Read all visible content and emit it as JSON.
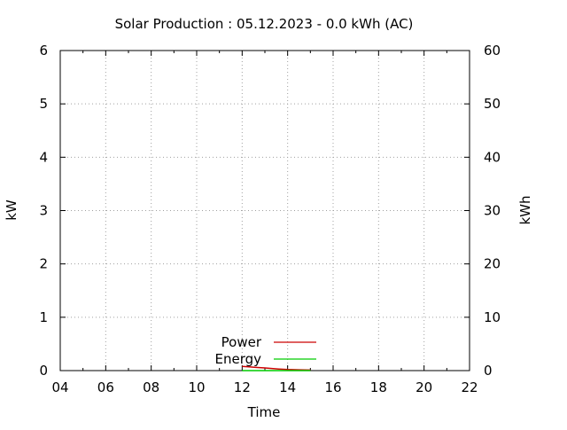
{
  "chart_data": {
    "type": "line",
    "title": "Solar Production : 05.12.2023 - 0.0 kWh (AC)",
    "xlabel": "Time",
    "ylabel": "kW",
    "y2label": "kWh",
    "xlim": [
      4,
      22
    ],
    "ylim": [
      0,
      6
    ],
    "y2lim": [
      0,
      60
    ],
    "x_ticks": [
      "04",
      "06",
      "08",
      "10",
      "12",
      "14",
      "16",
      "18",
      "20",
      "22"
    ],
    "y_ticks": [
      "0",
      "1",
      "2",
      "3",
      "4",
      "5",
      "6"
    ],
    "y2_ticks": [
      "0",
      "10",
      "20",
      "30",
      "40",
      "50",
      "60"
    ],
    "grid": true,
    "legend_position": "bottom-center",
    "series": [
      {
        "name": "Power",
        "axis": "left",
        "color": "#cc0000",
        "x": [
          12.0,
          12.3,
          12.6,
          13.0,
          13.3,
          13.6,
          14.0,
          14.5,
          15.0
        ],
        "y": [
          0.08,
          0.07,
          0.06,
          0.05,
          0.04,
          0.03,
          0.02,
          0.015,
          0.01
        ]
      },
      {
        "name": "Energy",
        "axis": "right",
        "color": "#00cc00",
        "x": [
          12.0,
          15.0
        ],
        "y": [
          0.0,
          0.0
        ]
      }
    ]
  }
}
